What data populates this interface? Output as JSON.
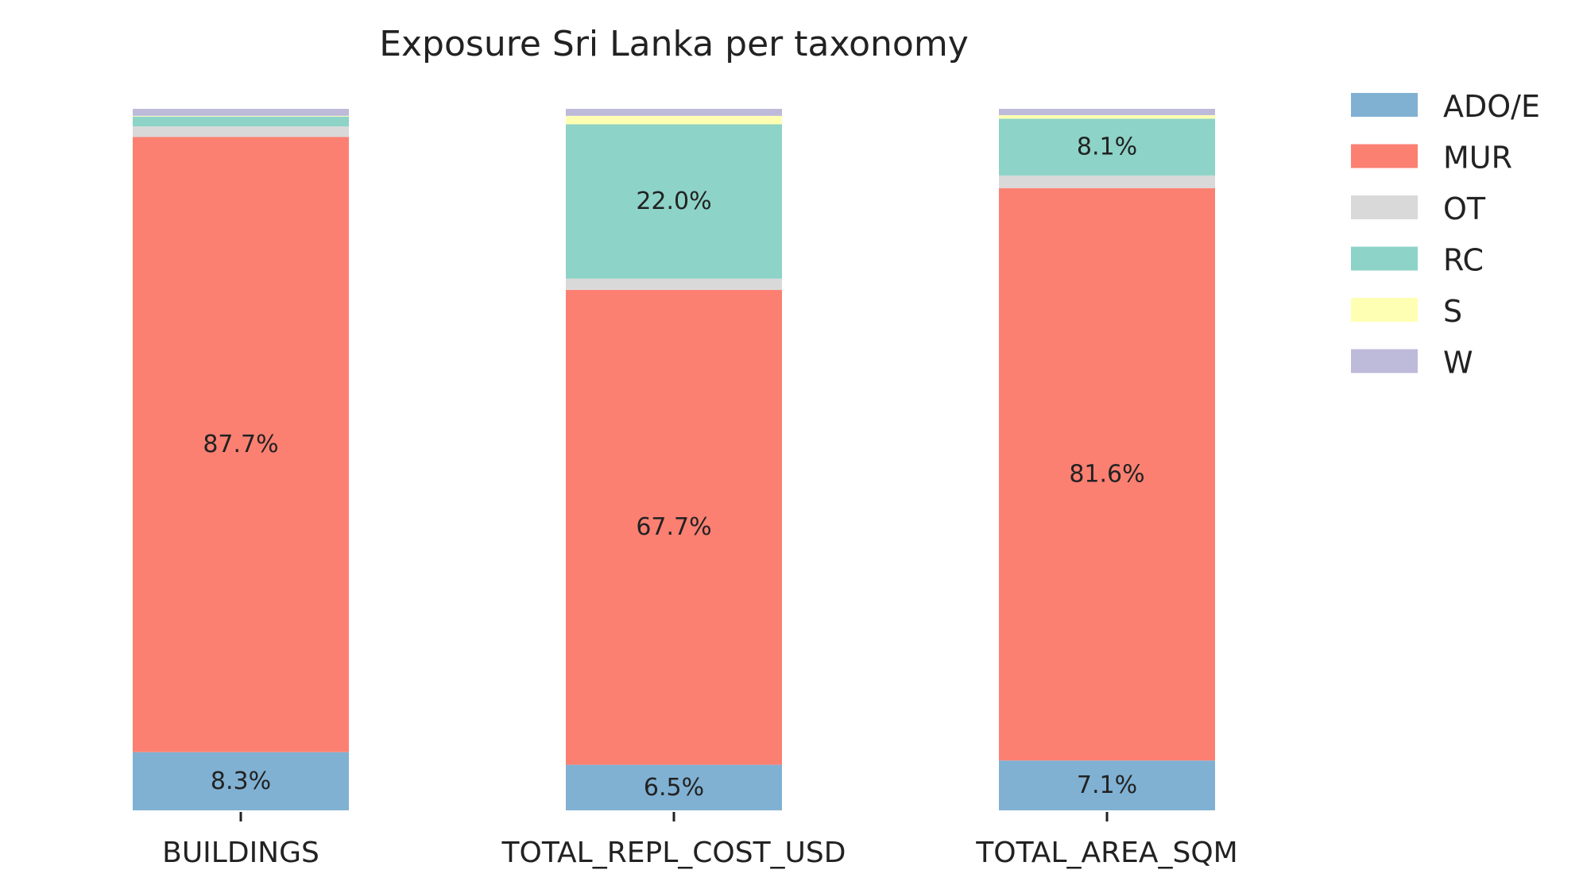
{
  "chart_data": {
    "type": "bar",
    "stacked": true,
    "normalized": true,
    "title": "Exposure Sri Lanka per taxonomy",
    "categories": [
      "BUILDINGS",
      "TOTAL_REPL_COST_USD",
      "TOTAL_AREA_SQM"
    ],
    "ylim": [
      0,
      100
    ],
    "grid": false,
    "legend_position": "right",
    "series": [
      {
        "name": "ADO/E",
        "color": "#80b1d3",
        "values": [
          8.3,
          6.5,
          7.1
        ],
        "labels": [
          "8.3%",
          "6.5%",
          "7.1%"
        ]
      },
      {
        "name": "MUR",
        "color": "#fb8072",
        "values": [
          87.7,
          67.7,
          81.6
        ],
        "labels": [
          "87.7%",
          "67.7%",
          "81.6%"
        ]
      },
      {
        "name": "OT",
        "color": "#d9d9d9",
        "values": [
          1.5,
          1.6,
          1.8
        ],
        "labels": [
          "",
          "",
          ""
        ]
      },
      {
        "name": "RC",
        "color": "#8dd3c7",
        "values": [
          1.4,
          22.0,
          8.1
        ],
        "labels": [
          "",
          "22.0%",
          "8.1%"
        ]
      },
      {
        "name": "S",
        "color": "#ffffb3",
        "values": [
          0.1,
          1.2,
          0.5
        ],
        "labels": [
          "",
          "",
          ""
        ]
      },
      {
        "name": "W",
        "color": "#bebada",
        "values": [
          1.0,
          1.0,
          0.9
        ],
        "labels": [
          "",
          "",
          ""
        ]
      }
    ]
  }
}
